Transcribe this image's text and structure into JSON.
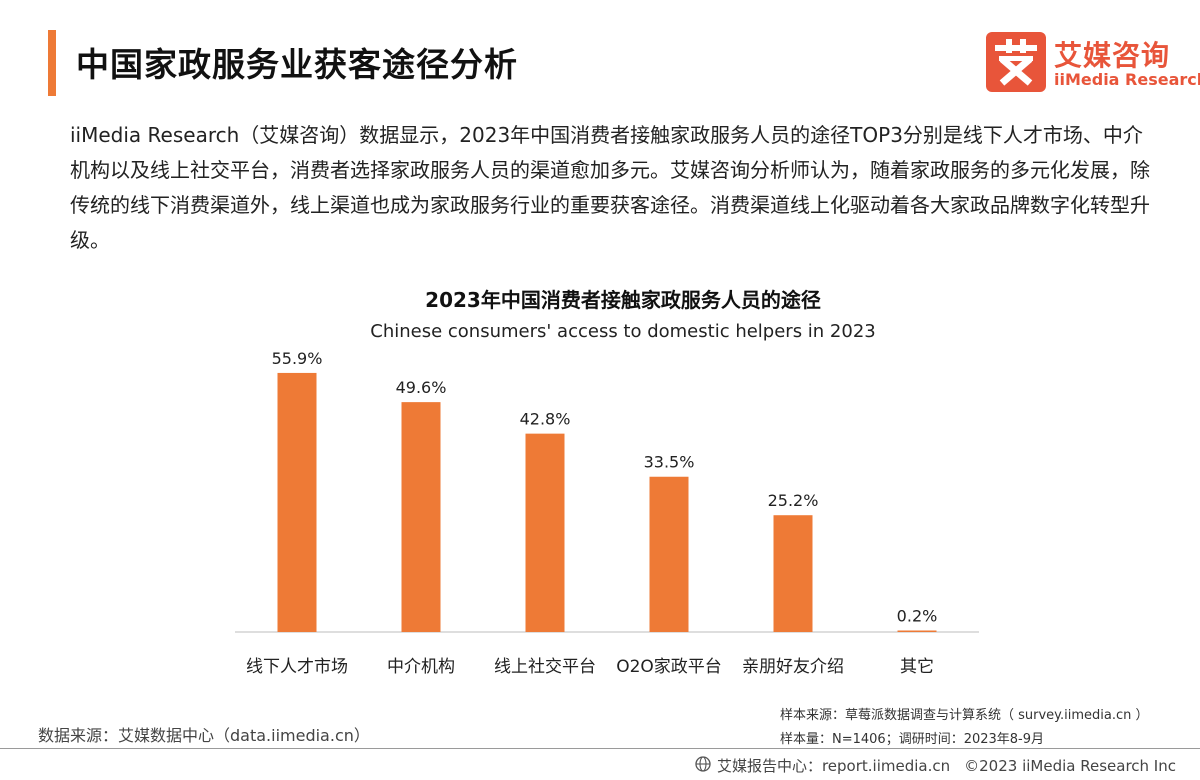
{
  "header": {
    "title": "中国家政服务业获客途径分析"
  },
  "logo": {
    "cn": "艾媒咨询",
    "en": "iiMedia Research",
    "mark": "艾",
    "accent_color": "#e8553a"
  },
  "intro": {
    "text": "iiMedia Research（艾媒咨询）数据显示，2023年中国消费者接触家政服务人员的途径TOP3分别是线下人才市场、中介机构以及线上社交平台，消费者选择家政服务人员的渠道愈加多元。艾媒咨询分析师认为，随着家政服务的多元化发展，除传统的线下消费渠道外，线上渠道也成为家政服务行业的重要获客途径。消费渠道线上化驱动着各大家政品牌数字化转型升级。"
  },
  "chart_data": {
    "type": "bar",
    "title": "2023年中国消费者接触家政服务人员的途径",
    "subtitle": "Chinese consumers' access to domestic helpers in 2023",
    "categories": [
      "线下人才市场",
      "中介机构",
      "线上社交平台",
      "O2O家政平台",
      "亲朋好友介绍",
      "其它"
    ],
    "values": [
      55.9,
      49.6,
      42.8,
      33.5,
      25.2,
      0.2
    ],
    "value_labels": [
      "55.9%",
      "49.6%",
      "42.8%",
      "33.5%",
      "25.2%",
      "0.2%"
    ],
    "unit": "%",
    "ylim": [
      0,
      60
    ],
    "bar_color": "#ee7a36",
    "grid": false,
    "legend": "none"
  },
  "footer": {
    "data_source": "数据来源：艾媒数据中心（data.iimedia.cn）",
    "sample_source": "样本来源：草莓派数据调查与计算系统（ survey.iimedia.cn ）",
    "sample_size": "样本量：N=1406；调研时间：2023年8-9月",
    "report_center": "艾媒报告中心：report.iimedia.cn",
    "copyright": "©2023  iiMedia Research  Inc"
  }
}
